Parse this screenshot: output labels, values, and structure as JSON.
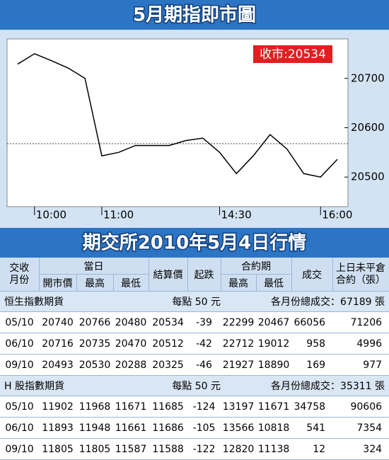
{
  "chart_data": {
    "type": "line",
    "title": "5月期指即市圖",
    "annotation": "收市:20534",
    "color": "#000000",
    "categories": [
      null,
      "10:00",
      null,
      null,
      null,
      "11:00",
      null,
      null,
      null,
      null,
      null,
      null,
      "14:30",
      null,
      null,
      null,
      null,
      null,
      "16:00",
      null
    ],
    "values": [
      20729,
      20750,
      20736,
      20721,
      20700,
      20543,
      20550,
      20564,
      20564,
      20564,
      20574,
      20579,
      20550,
      20507,
      20543,
      20586,
      20557,
      20507,
      20500,
      20536
    ],
    "ylim": [
      20440,
      20780
    ],
    "yticks": [
      20500,
      20600,
      20700
    ]
  },
  "table": {
    "title": "期交所2010年5月4日行情",
    "header_top": [
      "交收月份",
      "當日",
      "結算價",
      "起跌",
      "合約期",
      "成交",
      "上日未平倉合約（張）"
    ],
    "header_sub": [
      "開市價",
      "最高",
      "最低",
      "最高",
      "最低"
    ],
    "sections": [
      {
        "name": "恒生指數期貨",
        "unit": "每點 50 元",
        "total": "各月份總成交：67189 張",
        "rows": [
          [
            "05/10",
            "20740",
            "20766",
            "20480",
            "20534",
            "-39",
            "22299",
            "20467",
            "66056",
            "71206"
          ],
          [
            "06/10",
            "20716",
            "20735",
            "20470",
            "20512",
            "-42",
            "22712",
            "19012",
            "958",
            "4996"
          ],
          [
            "09/10",
            "20493",
            "20530",
            "20288",
            "20325",
            "-46",
            "21927",
            "18890",
            "169",
            "977"
          ]
        ]
      },
      {
        "name": "H 股指數期貨",
        "unit": "每點 50 元",
        "total": "各月份總成交：35311 張",
        "rows": [
          [
            "05/10",
            "11902",
            "11968",
            "11671",
            "11685",
            "-124",
            "13197",
            "11671",
            "34758",
            "90606"
          ],
          [
            "06/10",
            "11893",
            "11948",
            "11661",
            "11686",
            "-105",
            "13566",
            "10818",
            "541",
            "7354"
          ],
          [
            "09/10",
            "11805",
            "11805",
            "11587",
            "11588",
            "-122",
            "12820",
            "11138",
            "12",
            "324"
          ]
        ]
      }
    ]
  }
}
